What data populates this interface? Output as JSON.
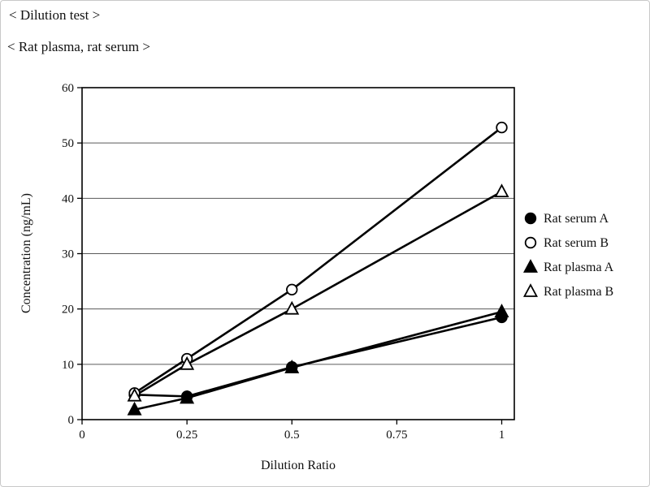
{
  "page": {
    "title1": "< Dilution test >",
    "title2": "< Rat plasma, rat serum >"
  },
  "chart_data": {
    "type": "scatter",
    "title": "",
    "xlabel": "Dilution Ratio",
    "ylabel": "Concentration (ng/mL)",
    "xlim": [
      0,
      1.03
    ],
    "ylim": [
      0,
      60
    ],
    "x_ticks": [
      0,
      0.25,
      0.5,
      0.75,
      1
    ],
    "y_ticks": [
      0,
      10,
      20,
      30,
      40,
      50,
      60
    ],
    "grid": "horizontal",
    "legend_position": "right",
    "x": [
      0.125,
      0.25,
      0.5,
      1
    ],
    "series": [
      {
        "name": "Rat serum A",
        "marker": "circle-filled",
        "values": [
          4.5,
          4.2,
          9.5,
          18.5
        ]
      },
      {
        "name": "Rat serum B",
        "marker": "circle-open",
        "values": [
          4.8,
          11.0,
          23.5,
          52.8
        ]
      },
      {
        "name": "Rat plasma A",
        "marker": "triangle-filled",
        "values": [
          1.8,
          3.9,
          9.4,
          19.5
        ]
      },
      {
        "name": "Rat plasma B",
        "marker": "triangle-open",
        "values": [
          4.3,
          10.0,
          20.0,
          41.2
        ]
      }
    ]
  }
}
